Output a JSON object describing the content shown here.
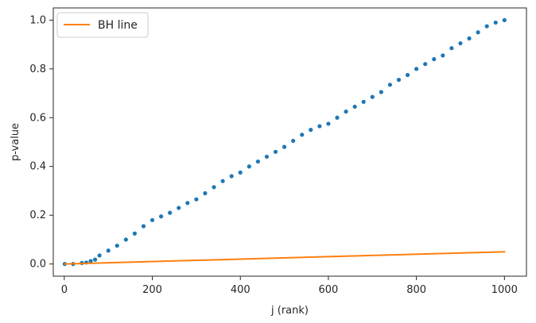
{
  "chart_data": {
    "type": "scatter",
    "title": "",
    "xlabel": "j (rank)",
    "ylabel": "p-value",
    "xlim": [
      -25,
      1050
    ],
    "ylim": [
      -0.05,
      1.05
    ],
    "grid": false,
    "legend_position": "top-left",
    "x_ticks": [
      0,
      200,
      400,
      600,
      800,
      1000
    ],
    "x_tick_labels": [
      "0",
      "200",
      "400",
      "600",
      "800",
      "1000"
    ],
    "y_ticks": [
      0.0,
      0.2,
      0.4,
      0.6,
      0.8,
      1.0
    ],
    "y_tick_labels": [
      "0.0",
      "0.2",
      "0.4",
      "0.6",
      "0.8",
      "1.0"
    ],
    "series": [
      {
        "kind": "scatter",
        "color": "#1f77b4",
        "approx_points": [
          [
            1,
            0.0
          ],
          [
            20,
            0.0
          ],
          [
            40,
            0.004
          ],
          [
            50,
            0.006
          ],
          [
            60,
            0.012
          ],
          [
            70,
            0.018
          ],
          [
            80,
            0.035
          ],
          [
            100,
            0.055
          ],
          [
            120,
            0.075
          ],
          [
            140,
            0.1
          ],
          [
            160,
            0.125
          ],
          [
            180,
            0.155
          ],
          [
            200,
            0.18
          ],
          [
            220,
            0.195
          ],
          [
            240,
            0.21
          ],
          [
            260,
            0.23
          ],
          [
            280,
            0.25
          ],
          [
            300,
            0.265
          ],
          [
            320,
            0.29
          ],
          [
            340,
            0.315
          ],
          [
            360,
            0.34
          ],
          [
            380,
            0.36
          ],
          [
            400,
            0.375
          ],
          [
            420,
            0.4
          ],
          [
            440,
            0.42
          ],
          [
            460,
            0.44
          ],
          [
            480,
            0.46
          ],
          [
            500,
            0.48
          ],
          [
            520,
            0.505
          ],
          [
            540,
            0.53
          ],
          [
            560,
            0.55
          ],
          [
            580,
            0.565
          ],
          [
            600,
            0.575
          ],
          [
            620,
            0.6
          ],
          [
            640,
            0.625
          ],
          [
            660,
            0.645
          ],
          [
            680,
            0.665
          ],
          [
            700,
            0.685
          ],
          [
            720,
            0.705
          ],
          [
            740,
            0.735
          ],
          [
            760,
            0.755
          ],
          [
            780,
            0.775
          ],
          [
            800,
            0.8
          ],
          [
            820,
            0.82
          ],
          [
            840,
            0.84
          ],
          [
            860,
            0.855
          ],
          [
            880,
            0.885
          ],
          [
            900,
            0.905
          ],
          [
            920,
            0.925
          ],
          [
            940,
            0.95
          ],
          [
            960,
            0.975
          ],
          [
            980,
            0.99
          ],
          [
            1000,
            1.0
          ]
        ]
      },
      {
        "kind": "line",
        "name": "BH line",
        "color": "#ff7f0e",
        "points": [
          [
            1,
            5e-05
          ],
          [
            1000,
            0.05
          ]
        ]
      }
    ]
  }
}
